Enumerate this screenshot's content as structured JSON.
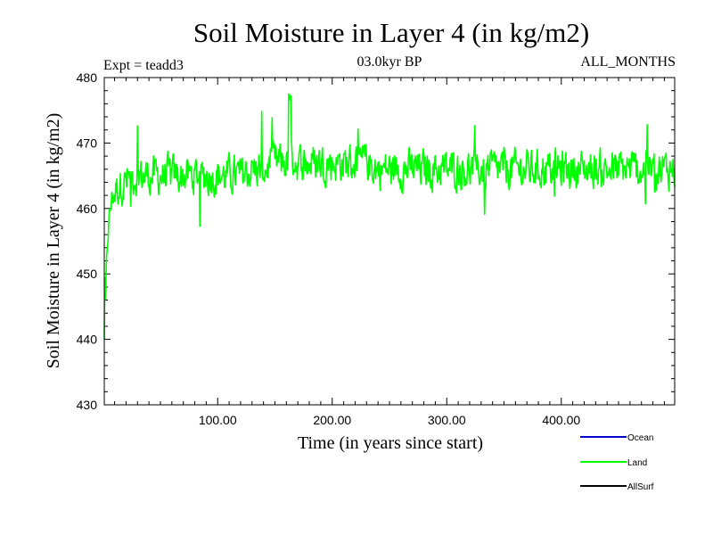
{
  "chart_data": {
    "type": "line",
    "title": "Soil Moisture in Layer 4 (in kg/m2)",
    "subtitle_left": "Expt = teadd3",
    "subtitle_center": "03.0kyr BP",
    "subtitle_right": "ALL_MONTHS",
    "xlabel": "Time (in years since start)",
    "ylabel": "Soil Moisture in Layer 4 (in kg/m2)",
    "xlim": [
      1,
      499
    ],
    "ylim": [
      430,
      480
    ],
    "x_ticks": [
      100,
      200,
      300,
      400
    ],
    "x_tick_labels": [
      "100.00",
      "200.00",
      "300.00",
      "400.00"
    ],
    "y_ticks": [
      430,
      440,
      450,
      460,
      470,
      480
    ],
    "y_tick_labels": [
      "430",
      "440",
      "450",
      "460",
      "470",
      "480"
    ],
    "legend": [
      {
        "name": "Ocean",
        "color": "#0000cc"
      },
      {
        "name": "Land",
        "color": "#00ff00"
      },
      {
        "name": "AllSurf",
        "color": "#000000"
      }
    ],
    "series": [
      {
        "name": "Land",
        "color": "#00ff00",
        "x": [
          1,
          3,
          5,
          8,
          12,
          16,
          20,
          25,
          30,
          40,
          50,
          60,
          70,
          80,
          90,
          100,
          110,
          120,
          130,
          140,
          150,
          160,
          165,
          170,
          180,
          190,
          200,
          210,
          220,
          230,
          240,
          250,
          260,
          270,
          280,
          290,
          300,
          310,
          320,
          330,
          340,
          350,
          360,
          370,
          380,
          390,
          400,
          410,
          420,
          430,
          440,
          450,
          460,
          470,
          480,
          490,
          499
        ],
        "values": [
          440,
          452,
          458,
          462,
          463,
          464,
          464,
          465,
          465,
          465,
          465,
          465,
          465,
          465,
          465,
          465,
          465,
          465,
          466,
          466,
          467,
          467,
          468,
          467,
          467,
          467,
          467,
          467,
          467,
          467,
          466,
          466,
          466,
          466,
          466,
          466,
          466,
          466,
          466,
          466,
          466,
          466,
          466,
          466,
          466,
          466,
          466,
          466,
          466,
          466,
          466,
          466,
          466,
          466,
          466,
          466,
          466
        ],
        "noise_amplitude": 4.5,
        "min": 440,
        "max": 478
      }
    ]
  }
}
